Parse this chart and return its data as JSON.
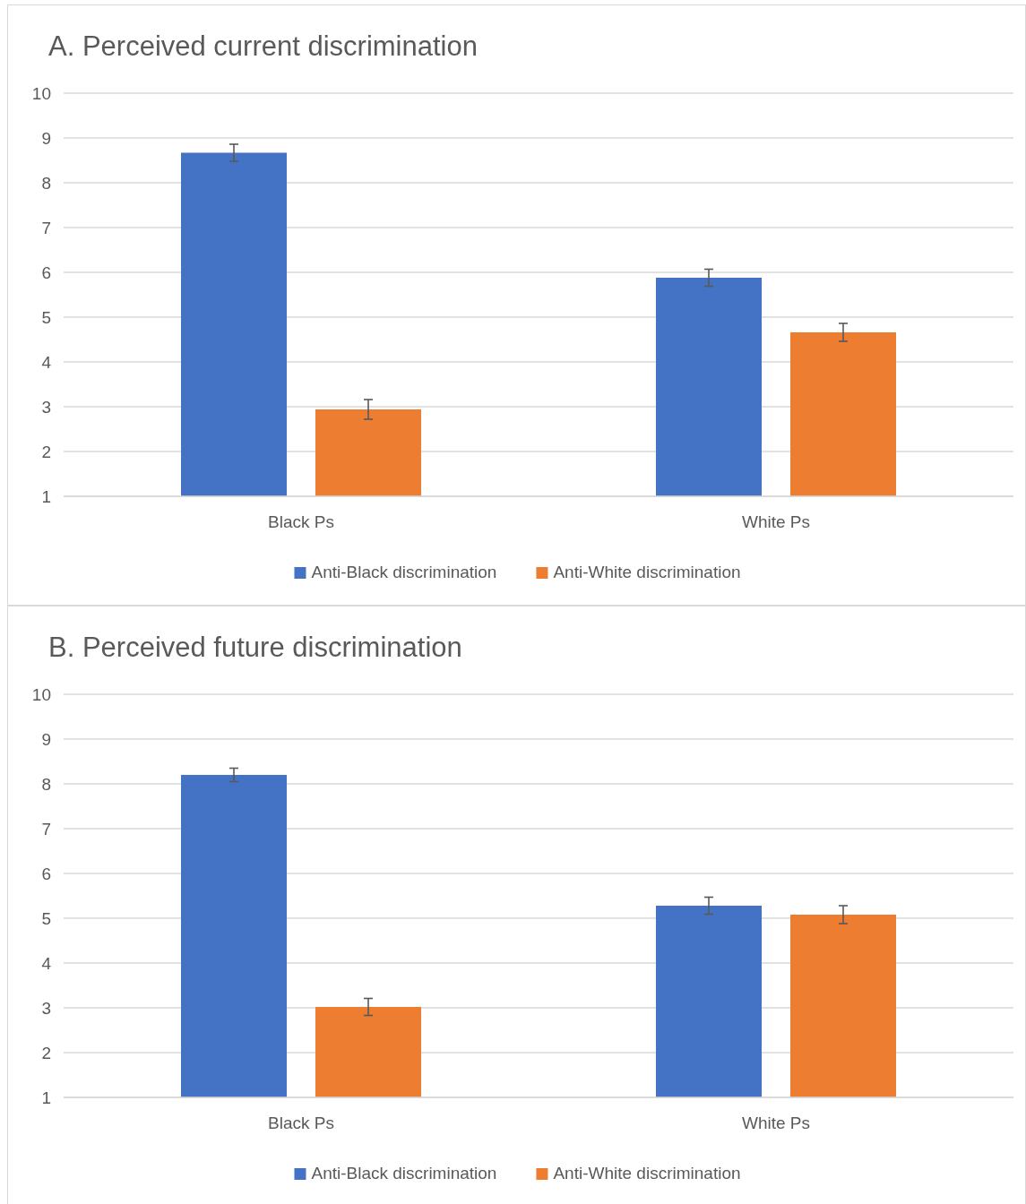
{
  "chart_data": [
    {
      "type": "bar",
      "title": "A. Perceived current discrimination",
      "categories": [
        "Black Ps",
        "White Ps"
      ],
      "ylim": [
        1,
        10
      ],
      "yticks": [
        1,
        2,
        3,
        4,
        5,
        6,
        7,
        8,
        9,
        10
      ],
      "grid": "y",
      "legend": "bottom",
      "series": [
        {
          "name": "Anti-Black discrimination",
          "color": "#4472c4",
          "values": [
            8.67,
            5.88
          ],
          "errors": [
            0.19,
            0.19
          ]
        },
        {
          "name": "Anti-White discrimination",
          "color": "#ed7d31",
          "values": [
            2.94,
            4.66
          ],
          "errors": [
            0.22,
            0.2
          ]
        }
      ]
    },
    {
      "type": "bar",
      "title": "B. Perceived future discrimination",
      "categories": [
        "Black Ps",
        "White Ps"
      ],
      "ylim": [
        1,
        10
      ],
      "yticks": [
        1,
        2,
        3,
        4,
        5,
        6,
        7,
        8,
        9,
        10
      ],
      "grid": "y",
      "legend": "bottom",
      "series": [
        {
          "name": "Anti-Black discrimination",
          "color": "#4472c4",
          "values": [
            8.2,
            5.28
          ],
          "errors": [
            0.15,
            0.19
          ]
        },
        {
          "name": "Anti-White discrimination",
          "color": "#ed7d31",
          "values": [
            3.02,
            5.08
          ],
          "errors": [
            0.19,
            0.2
          ]
        }
      ]
    }
  ]
}
